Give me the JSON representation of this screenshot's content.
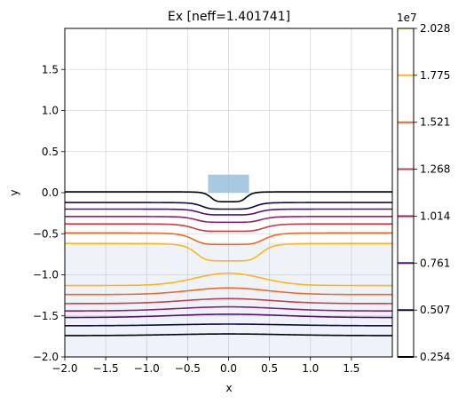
{
  "chart_data": {
    "type": "contour",
    "title": "Ex [neff=1.401741]",
    "xlabel": "x",
    "ylabel": "y",
    "xlim": [
      -2.0,
      2.0
    ],
    "ylim": [
      -2.0,
      2.0
    ],
    "xticks": [
      -2.0,
      -1.5,
      -1.0,
      -0.5,
      0.0,
      0.5,
      1.0,
      1.5
    ],
    "xtick_labels": [
      "−2.0",
      "−1.5",
      "−1.0",
      "−0.5",
      "0.0",
      "0.5",
      "1.0",
      "1.5"
    ],
    "yticks": [
      -2.0,
      -1.5,
      -1.0,
      -0.5,
      0.0,
      0.5,
      1.0,
      1.5
    ],
    "ytick_labels": [
      "−2.0",
      "−1.5",
      "−1.0",
      "−0.5",
      "0.0",
      "0.5",
      "1.0",
      "1.5"
    ],
    "grid": true,
    "geometry": {
      "waveguide_core": {
        "x": [
          -0.25,
          0.25
        ],
        "y": [
          0.0,
          0.22
        ],
        "color": "#a8c8e4"
      },
      "substrate": {
        "x": [
          -2.0,
          2.0
        ],
        "y": [
          -2.0,
          -0.6
        ],
        "color": "#eef3f9"
      }
    },
    "colorbar": {
      "exponent_label": "1e7",
      "levels": [
        0.254,
        0.507,
        0.761,
        1.014,
        1.268,
        1.521,
        1.775,
        2.028
      ],
      "tick_labels": [
        "0.254",
        "0.507",
        "0.761",
        "1.014",
        "1.268",
        "1.521",
        "1.775",
        "2.028"
      ],
      "colors": [
        "#000004",
        "#140b35",
        "#57106e",
        "#8c2369",
        "#c73e4c",
        "#ed6925",
        "#fbb61a",
        "#fcffa4"
      ]
    },
    "series": [
      {
        "level": 0.254,
        "upper": true,
        "edge_y": 0.01,
        "center_y": -0.11,
        "core_half_width": 0.3
      },
      {
        "level": 0.507,
        "upper": true,
        "edge_y": -0.12,
        "center_y": -0.2,
        "core_half_width": 0.45
      },
      {
        "level": 0.761,
        "upper": true,
        "edge_y": -0.2,
        "center_y": -0.27,
        "core_half_width": 0.5
      },
      {
        "level": 1.014,
        "upper": true,
        "edge_y": -0.29,
        "center_y": -0.36,
        "core_half_width": 0.55
      },
      {
        "level": 1.268,
        "upper": true,
        "edge_y": -0.38,
        "center_y": -0.47,
        "core_half_width": 0.6
      },
      {
        "level": 1.521,
        "upper": true,
        "edge_y": -0.49,
        "center_y": -0.63,
        "core_half_width": 0.6
      },
      {
        "level": 1.775,
        "upper": true,
        "edge_y": -0.62,
        "center_y": -0.83,
        "core_half_width": 0.55
      },
      {
        "level": 1.775,
        "upper": false,
        "edge_y": -1.13,
        "center_y": -0.98,
        "core_half_width": 0.6
      },
      {
        "level": 1.521,
        "upper": false,
        "edge_y": -1.24,
        "center_y": -1.16,
        "core_half_width": 0.7
      },
      {
        "level": 1.268,
        "upper": false,
        "edge_y": -1.35,
        "center_y": -1.29,
        "core_half_width": 0.8
      },
      {
        "level": 1.014,
        "upper": false,
        "edge_y": -1.44,
        "center_y": -1.39,
        "core_half_width": 0.9
      },
      {
        "level": 0.761,
        "upper": false,
        "edge_y": -1.52,
        "center_y": -1.48,
        "core_half_width": 1.0
      },
      {
        "level": 0.507,
        "upper": false,
        "edge_y": -1.62,
        "center_y": -1.6,
        "core_half_width": 1.0
      },
      {
        "level": 0.254,
        "upper": false,
        "edge_y": -1.74,
        "center_y": -1.72,
        "core_half_width": 1.0
      }
    ]
  }
}
